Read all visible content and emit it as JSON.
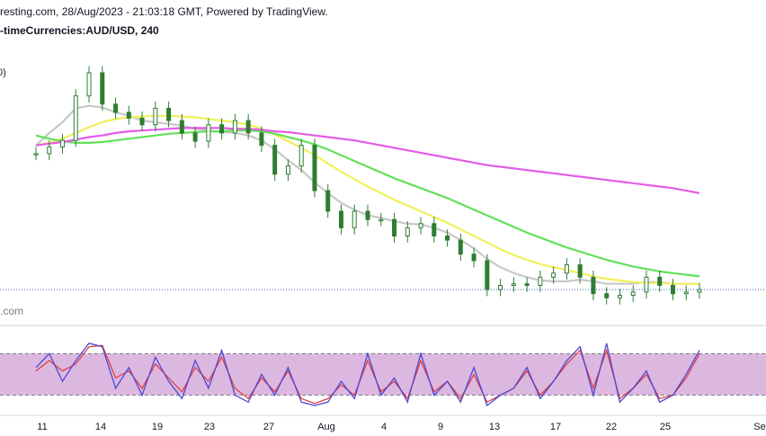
{
  "header": {
    "line1": "resting.com, 28/Aug/2023 - 21:03:18 GMT, Powered by TradingView.",
    "line2": "-timeCurrencies:AUD/USD, 240"
  },
  "legend_fragments": [
    ")",
    "0)"
  ],
  "watermark": ".com",
  "colors": {
    "candle": "#2e7d32",
    "ma_gray": "#c8c8c8",
    "ma_yellow": "#f2ef5a",
    "ma_green": "#63e05a",
    "ma_magenta": "#e45be8",
    "price_line": "#3b5fb0",
    "stoch_band": "#dcb8e0",
    "stoch_k": "#4b47d6",
    "stoch_d": "#e0403e",
    "axis_text": "#131722"
  },
  "chart_data": {
    "type": "line",
    "symbol": "AUD/USD",
    "timeframe": "240",
    "x_tick_labels": [
      "11",
      "14",
      "19",
      "23",
      "27",
      "Aug",
      "4",
      "9",
      "13",
      "17",
      "22",
      "25",
      "Se"
    ],
    "x": [
      0,
      1,
      2,
      3,
      4,
      5,
      6,
      7,
      8,
      9,
      10,
      11,
      12,
      13,
      14,
      15,
      16,
      17,
      18,
      19,
      20,
      21,
      22,
      23,
      24,
      25,
      26,
      27,
      28,
      29,
      30,
      31,
      32,
      33,
      34,
      35,
      36,
      37,
      38,
      39,
      40,
      41,
      42,
      43,
      44,
      45,
      46,
      47,
      48,
      49,
      50
    ],
    "series": [
      {
        "key": "close",
        "values": [
          0.679,
          0.6798,
          0.6806,
          0.686,
          0.6888,
          0.685,
          0.684,
          0.6833,
          0.6825,
          0.6845,
          0.683,
          0.6815,
          0.6805,
          0.6825,
          0.6815,
          0.683,
          0.6815,
          0.68,
          0.6765,
          0.6775,
          0.68,
          0.6745,
          0.672,
          0.67,
          0.672,
          0.671,
          0.671,
          0.669,
          0.67,
          0.6705,
          0.669,
          0.6685,
          0.6668,
          0.666,
          0.6625,
          0.663,
          0.6632,
          0.663,
          0.664,
          0.6645,
          0.6655,
          0.664,
          0.662,
          0.6615,
          0.6618,
          0.6622,
          0.664,
          0.663,
          0.662,
          0.6622,
          0.6625
        ]
      },
      {
        "key": "ma_gray",
        "values": [
          0.68,
          0.6815,
          0.6828,
          0.6845,
          0.6848,
          0.6846,
          0.684,
          0.6836,
          0.683,
          0.6828,
          0.6826,
          0.6824,
          0.682,
          0.6818,
          0.6816,
          0.6815,
          0.6812,
          0.6806,
          0.6795,
          0.6782,
          0.677,
          0.6755,
          0.6742,
          0.673,
          0.6722,
          0.6715,
          0.6712,
          0.6708,
          0.6705,
          0.6704,
          0.67,
          0.6694,
          0.6685,
          0.6675,
          0.6662,
          0.6652,
          0.6645,
          0.664,
          0.6636,
          0.6635,
          0.6635,
          0.6637,
          0.6635,
          0.6632,
          0.6632,
          0.6632,
          0.6634,
          0.6634,
          0.6632,
          0.6632,
          0.6632
        ]
      },
      {
        "key": "ma_yellow",
        "values": [
          0.68,
          0.6803,
          0.6808,
          0.6815,
          0.6822,
          0.6828,
          0.6832,
          0.6834,
          0.6835,
          0.6836,
          0.6836,
          0.6835,
          0.6834,
          0.6832,
          0.683,
          0.6828,
          0.6825,
          0.682,
          0.6813,
          0.6805,
          0.6797,
          0.6788,
          0.6778,
          0.6768,
          0.6759,
          0.675,
          0.6742,
          0.6734,
          0.6727,
          0.672,
          0.6713,
          0.6706,
          0.6698,
          0.669,
          0.6682,
          0.6674,
          0.6667,
          0.6661,
          0.6656,
          0.6652,
          0.6649,
          0.6645,
          0.6641,
          0.6638,
          0.6636,
          0.6634,
          0.6633,
          0.6633,
          0.6632,
          0.6632,
          0.6632
        ]
      },
      {
        "key": "ma_green",
        "values": [
          0.6812,
          0.6808,
          0.6805,
          0.6803,
          0.6803,
          0.6804,
          0.6806,
          0.6808,
          0.681,
          0.6812,
          0.6814,
          0.6815,
          0.6816,
          0.6817,
          0.6817,
          0.6818,
          0.6818,
          0.6817,
          0.6814,
          0.681,
          0.6806,
          0.6801,
          0.6795,
          0.6788,
          0.6781,
          0.6774,
          0.6767,
          0.676,
          0.6754,
          0.6748,
          0.6742,
          0.6736,
          0.6729,
          0.6722,
          0.6715,
          0.6708,
          0.6701,
          0.6694,
          0.6688,
          0.6682,
          0.6676,
          0.6671,
          0.6666,
          0.6661,
          0.6657,
          0.6653,
          0.665,
          0.6647,
          0.6645,
          0.6643,
          0.6641
        ]
      },
      {
        "key": "ma_magenta",
        "values": [
          0.68,
          0.6802,
          0.6804,
          0.6807,
          0.681,
          0.6812,
          0.6815,
          0.6817,
          0.6818,
          0.6819,
          0.682,
          0.6821,
          0.6821,
          0.6821,
          0.6821,
          0.682,
          0.682,
          0.6819,
          0.6817,
          0.6816,
          0.6814,
          0.6812,
          0.681,
          0.6808,
          0.6806,
          0.6803,
          0.68,
          0.6797,
          0.6794,
          0.6791,
          0.6788,
          0.6785,
          0.6782,
          0.6779,
          0.6776,
          0.6774,
          0.6772,
          0.677,
          0.6768,
          0.6766,
          0.6764,
          0.6762,
          0.676,
          0.6758,
          0.6756,
          0.6754,
          0.6752,
          0.675,
          0.6748,
          0.6745,
          0.6742
        ]
      }
    ],
    "last_price": 0.6625,
    "stochastic": {
      "k_line": "blue",
      "d_line": "red",
      "ylim": [
        0,
        100
      ],
      "upper_level": 80,
      "lower_level": 20,
      "k": [
        60,
        80,
        40,
        70,
        95,
        90,
        30,
        60,
        20,
        75,
        40,
        15,
        70,
        30,
        85,
        20,
        10,
        50,
        20,
        60,
        10,
        5,
        10,
        40,
        15,
        80,
        20,
        45,
        10,
        80,
        20,
        40,
        10,
        60,
        5,
        20,
        30,
        60,
        15,
        40,
        70,
        90,
        20,
        95,
        10,
        30,
        55,
        10,
        20,
        50,
        85
      ],
      "d": [
        55,
        70,
        55,
        65,
        90,
        92,
        45,
        55,
        30,
        65,
        45,
        25,
        60,
        40,
        75,
        30,
        15,
        45,
        25,
        55,
        15,
        8,
        15,
        35,
        20,
        70,
        25,
        40,
        15,
        70,
        25,
        40,
        15,
        50,
        10,
        20,
        30,
        55,
        20,
        40,
        65,
        85,
        30,
        85,
        15,
        30,
        50,
        15,
        20,
        45,
        80
      ]
    }
  }
}
